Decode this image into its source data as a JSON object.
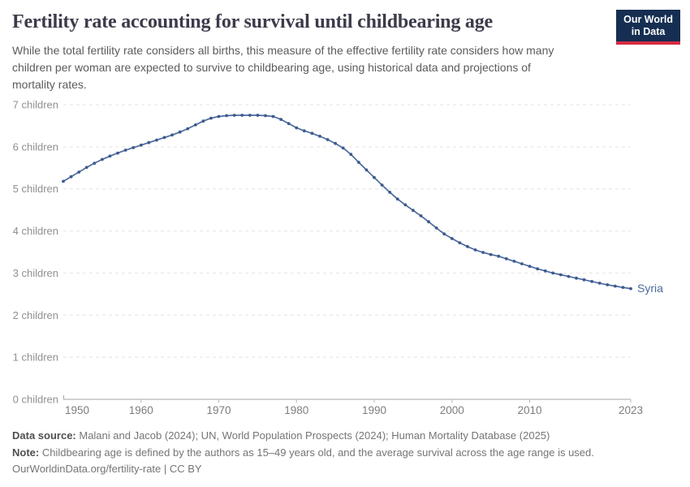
{
  "header": {
    "title": "Fertility rate accounting for survival until childbearing age",
    "subtitle_lines": [
      "While the total fertility rate considers all births, this measure of the effective fertility rate considers how many",
      "children per woman are expected to survive to childbearing age, using historical data and projections of",
      "mortality rates."
    ],
    "logo_line1": "Our World",
    "logo_line2": "in Data",
    "logo_bg_color": "#162e51",
    "logo_accent_color": "#d52b42"
  },
  "chart_data": {
    "type": "line",
    "title": "Fertility rate accounting for survival until childbearing age",
    "unit": "children per woman",
    "grid": "horizontal dashed",
    "legend_position": "end-of-line label",
    "xlim": [
      1950,
      2023
    ],
    "ylim": [
      0,
      7
    ],
    "x_ticks": [
      1950,
      1960,
      1970,
      1980,
      1990,
      2000,
      2010,
      2023
    ],
    "y_ticks": [
      {
        "value": 0,
        "label": "0 children"
      },
      {
        "value": 1,
        "label": "1 children"
      },
      {
        "value": 2,
        "label": "2 children"
      },
      {
        "value": 3,
        "label": "3 children"
      },
      {
        "value": 4,
        "label": "4 children"
      },
      {
        "value": 5,
        "label": "5 children"
      },
      {
        "value": 6,
        "label": "6 children"
      },
      {
        "value": 7,
        "label": "7 children"
      }
    ],
    "x": [
      1950,
      1951,
      1952,
      1953,
      1954,
      1955,
      1956,
      1957,
      1958,
      1959,
      1960,
      1961,
      1962,
      1963,
      1964,
      1965,
      1966,
      1967,
      1968,
      1969,
      1970,
      1971,
      1972,
      1973,
      1974,
      1975,
      1976,
      1977,
      1978,
      1979,
      1980,
      1981,
      1982,
      1983,
      1984,
      1985,
      1986,
      1987,
      1988,
      1989,
      1990,
      1991,
      1992,
      1993,
      1994,
      1995,
      1996,
      1997,
      1998,
      1999,
      2000,
      2001,
      2002,
      2003,
      2004,
      2005,
      2006,
      2007,
      2008,
      2009,
      2010,
      2011,
      2012,
      2013,
      2014,
      2015,
      2016,
      2017,
      2018,
      2019,
      2020,
      2021,
      2022,
      2023
    ],
    "series": [
      {
        "name": "Syria",
        "color": "#4c6a9c",
        "marker_color": "#3d5a8f",
        "values": [
          5.18,
          5.29,
          5.4,
          5.51,
          5.61,
          5.7,
          5.78,
          5.85,
          5.92,
          5.98,
          6.04,
          6.1,
          6.16,
          6.22,
          6.28,
          6.35,
          6.43,
          6.52,
          6.61,
          6.68,
          6.72,
          6.74,
          6.75,
          6.75,
          6.75,
          6.75,
          6.74,
          6.72,
          6.65,
          6.55,
          6.45,
          6.38,
          6.32,
          6.25,
          6.17,
          6.08,
          5.97,
          5.82,
          5.63,
          5.45,
          5.27,
          5.09,
          4.92,
          4.76,
          4.62,
          4.49,
          4.36,
          4.22,
          4.07,
          3.93,
          3.82,
          3.72,
          3.63,
          3.55,
          3.49,
          3.44,
          3.4,
          3.34,
          3.28,
          3.22,
          3.16,
          3.1,
          3.05,
          3.0,
          2.96,
          2.92,
          2.88,
          2.84,
          2.8,
          2.76,
          2.72,
          2.69,
          2.66,
          2.63
        ]
      }
    ],
    "end_label": "Syria"
  },
  "footer": {
    "source_prefix": "Data source:",
    "source_text": " Malani and Jacob (2024); UN, World Population Prospects (2024); Human Mortality Database (2025)",
    "note_prefix": "Note:",
    "note_text": " Childbearing age is defined by the authors as 15–49 years old, and the average survival across the age range is used.",
    "url_text": "OurWorldinData.org/fertility-rate",
    "license_text": " | CC BY"
  }
}
